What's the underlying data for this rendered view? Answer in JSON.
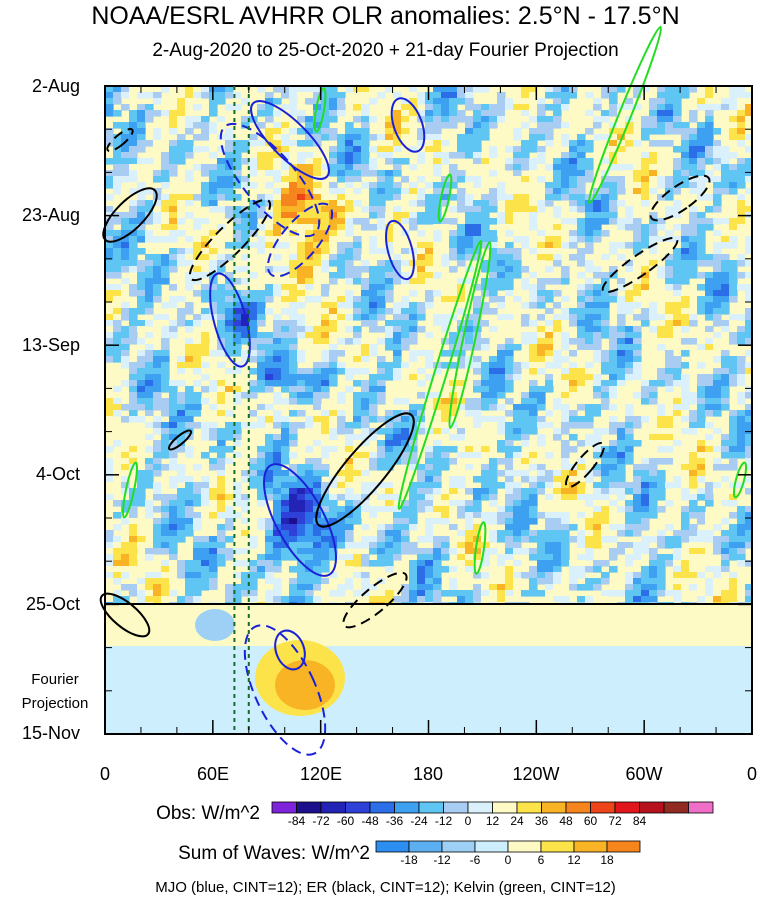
{
  "chart_data": {
    "type": "heatmap",
    "title": "NOAA/ESRL AVHRR OLR anomalies: 2.5°N - 17.5°N",
    "subtitle": "2-Aug-2020 to 25-Oct-2020 + 21-day Fourier Projection",
    "x_tick_labels": [
      "0",
      "60E",
      "120E",
      "180",
      "120W",
      "60W",
      "0"
    ],
    "x_tick_values_deg": [
      0,
      60,
      120,
      180,
      240,
      300,
      360
    ],
    "y_tick_labels": [
      "2-Aug",
      "23-Aug",
      "13-Sep",
      "4-Oct",
      "25-Oct",
      "15-Nov"
    ],
    "projection_label": [
      "Fourier",
      "Projection"
    ],
    "obs_end_date": "25-Oct",
    "reference_longitudes_deg": [
      72,
      80
    ],
    "obs_colorbar": {
      "label": "Obs: W/m^2",
      "levels": [
        -84,
        -72,
        -60,
        -48,
        -36,
        -24,
        -12,
        0,
        12,
        24,
        36,
        48,
        60,
        72,
        84
      ],
      "tick_labels": [
        "-84",
        "-72",
        "-60",
        "-48",
        "-36",
        "-24",
        "-12",
        "0",
        "12",
        "24",
        "36",
        "48",
        "60",
        "72",
        "84"
      ],
      "colors": [
        "#7f22dc",
        "#1c0f8c",
        "#2323b6",
        "#2f40d8",
        "#2b6ee8",
        "#3ea0f0",
        "#5fc6f4",
        "#a9cdf2",
        "#daf0fb",
        "#fdfac5",
        "#fde34a",
        "#f9b426",
        "#f7851d",
        "#ee4419",
        "#e1161b",
        "#b8111e",
        "#912a23",
        "#ef6ec8"
      ]
    },
    "waves_colorbar": {
      "label": "Sum of Waves: W/m^2",
      "levels": [
        -18,
        -12,
        -6,
        0,
        6,
        12,
        18
      ],
      "tick_labels": [
        "-18",
        "-12",
        "-6",
        "0",
        "6",
        "12",
        "18"
      ],
      "colors": [
        "#2b8ef0",
        "#5cb0f2",
        "#9dd0f4",
        "#cdeefc",
        "#fdfac5",
        "#fde34a",
        "#f9b426",
        "#f7851d"
      ]
    },
    "contours_legend": "MJO (blue, CINT=12); ER (black, CINT=12); Kelvin (green, CINT=12)",
    "contour_series": [
      {
        "name": "MJO",
        "color": "#1a22d8"
      },
      {
        "name": "ER",
        "color": "#000000"
      },
      {
        "name": "Kelvin",
        "color": "#22dd22"
      }
    ]
  }
}
